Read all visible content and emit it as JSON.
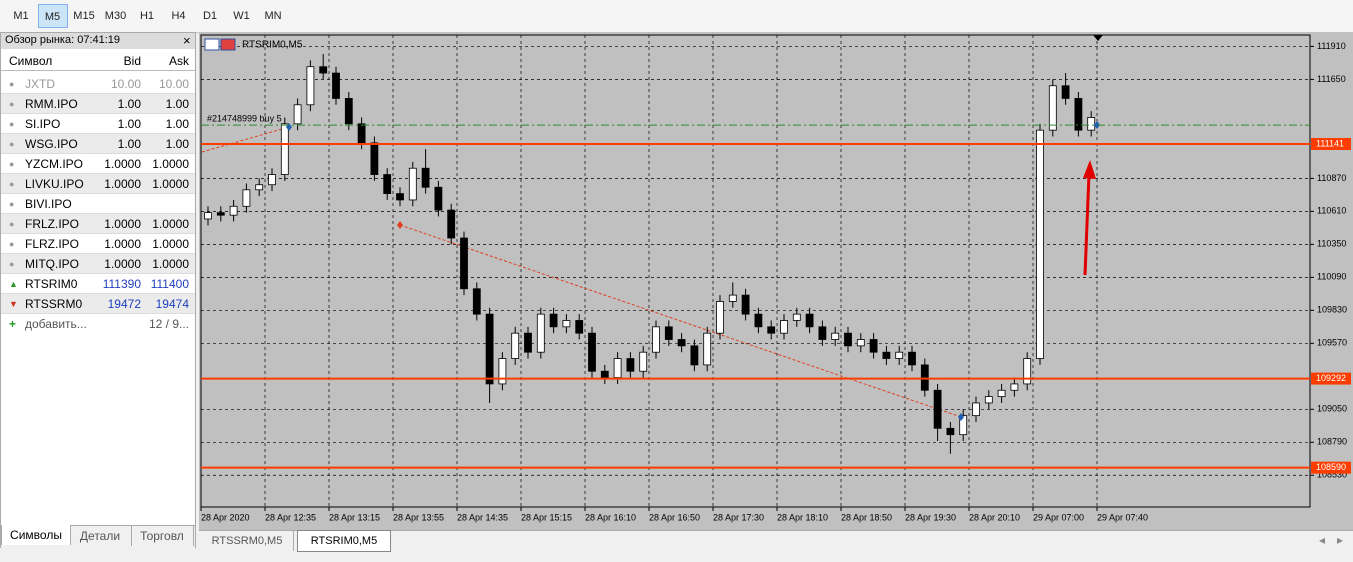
{
  "toolbar": {
    "timeframes": [
      "M1",
      "M5",
      "M15",
      "M30",
      "H1",
      "H4",
      "D1",
      "W1",
      "MN"
    ],
    "active_index": 1
  },
  "market_watch": {
    "title": "Обзор рынка: 07:41:19",
    "close": "×",
    "columns": [
      "Символ",
      "Bid",
      "Ask"
    ],
    "rows": [
      {
        "symbol": "JXTD",
        "bid": "10.00",
        "ask": "10.00",
        "state": "inactive"
      },
      {
        "symbol": "RMM.IPO",
        "bid": "1.00",
        "ask": "1.00",
        "state": "normal"
      },
      {
        "symbol": "SI.IPO",
        "bid": "1.00",
        "ask": "1.00",
        "state": "normal"
      },
      {
        "symbol": "WSG.IPO",
        "bid": "1.00",
        "ask": "1.00",
        "state": "normal"
      },
      {
        "symbol": "YZCM.IPO",
        "bid": "1.0000",
        "ask": "1.0000",
        "state": "normal"
      },
      {
        "symbol": "LIVKU.IPO",
        "bid": "1.0000",
        "ask": "1.0000",
        "state": "normal"
      },
      {
        "symbol": "BIVI.IPO",
        "bid": "",
        "ask": "",
        "state": "normal"
      },
      {
        "symbol": "FRLZ.IPO",
        "bid": "1.0000",
        "ask": "1.0000",
        "state": "normal"
      },
      {
        "symbol": "FLRZ.IPO",
        "bid": "1.0000",
        "ask": "1.0000",
        "state": "normal"
      },
      {
        "symbol": "MITQ.IPO",
        "bid": "1.0000",
        "ask": "1.0000",
        "state": "normal"
      },
      {
        "symbol": "RTSRIM0",
        "bid": "111390",
        "ask": "111400",
        "state": "up"
      },
      {
        "symbol": "RTSSRM0",
        "bid": "19472",
        "ask": "19474",
        "state": "down"
      }
    ],
    "add_label": "добавить...",
    "count": "12 / 9...",
    "tabs": [
      "Символы",
      "Детали",
      "Торговл"
    ],
    "active_tab": 0
  },
  "chart_tabs": [
    "RTSSRM0,M5",
    "RTSRIM0,M5"
  ],
  "active_chart_tab": 1,
  "chart_data": {
    "type": "candlestick",
    "title": "RTSRIM0,M5",
    "x_labels": [
      "28 Apr 2020",
      "28 Apr 12:35",
      "28 Apr 13:15",
      "28 Apr 13:55",
      "28 Apr 14:35",
      "28 Apr 15:15",
      "28 Apr 16:10",
      "28 Apr 16:50",
      "28 Apr 17:30",
      "28 Apr 18:10",
      "28 Apr 18:50",
      "28 Apr 19:30",
      "28 Apr 20:10",
      "29 Apr 07:00",
      "29 Apr 07:40"
    ],
    "ylim": [
      108280,
      112000
    ],
    "yticks": [
      111910,
      111650,
      110870,
      110610,
      110350,
      110090,
      109830,
      109570,
      109050,
      108790,
      108530
    ],
    "grid": true,
    "up_color": "#ffffff",
    "down_color": "#000000",
    "levels": [
      111141,
      109292,
      108590
    ],
    "level_color": "#ff3c00",
    "order": {
      "label": "#214748999 buy 5",
      "price": 111290,
      "color": "#2e8b2e"
    },
    "candles": [
      [
        110550,
        110650,
        110500,
        110600
      ],
      [
        110600,
        110650,
        110530,
        110580
      ],
      [
        110580,
        110700,
        110530,
        110650
      ],
      [
        110650,
        110830,
        110600,
        110780
      ],
      [
        110780,
        110870,
        110730,
        110820
      ],
      [
        110820,
        110950,
        110770,
        110900
      ],
      [
        110900,
        111350,
        110850,
        111300
      ],
      [
        111300,
        111500,
        111250,
        111450
      ],
      [
        111450,
        111800,
        111400,
        111750
      ],
      [
        111750,
        111850,
        111650,
        111700
      ],
      [
        111700,
        111750,
        111450,
        111500
      ],
      [
        111500,
        111550,
        111250,
        111300
      ],
      [
        111300,
        111350,
        111100,
        111150
      ],
      [
        111150,
        111200,
        110850,
        110900
      ],
      [
        110900,
        110950,
        110700,
        110750
      ],
      [
        110750,
        110800,
        110650,
        110700
      ],
      [
        110700,
        111000,
        110650,
        110950
      ],
      [
        110950,
        111100,
        110750,
        110800
      ],
      [
        110800,
        110850,
        110570,
        110620
      ],
      [
        110620,
        110670,
        110350,
        110400
      ],
      [
        110400,
        110450,
        109950,
        110000
      ],
      [
        110000,
        110050,
        109750,
        109800
      ],
      [
        109800,
        109850,
        109100,
        109250
      ],
      [
        109250,
        109500,
        109200,
        109450
      ],
      [
        109450,
        109700,
        109400,
        109650
      ],
      [
        109650,
        109700,
        109450,
        109500
      ],
      [
        109500,
        109850,
        109450,
        109800
      ],
      [
        109800,
        109850,
        109650,
        109700
      ],
      [
        109700,
        109800,
        109650,
        109750
      ],
      [
        109750,
        109800,
        109600,
        109650
      ],
      [
        109650,
        109700,
        109300,
        109350
      ],
      [
        109350,
        109400,
        109250,
        109300
      ],
      [
        109300,
        109500,
        109250,
        109450
      ],
      [
        109450,
        109500,
        109300,
        109350
      ],
      [
        109350,
        109550,
        109300,
        109500
      ],
      [
        109500,
        109750,
        109450,
        109700
      ],
      [
        109700,
        109750,
        109550,
        109600
      ],
      [
        109600,
        109650,
        109500,
        109550
      ],
      [
        109550,
        109600,
        109350,
        109400
      ],
      [
        109400,
        109700,
        109350,
        109650
      ],
      [
        109650,
        109950,
        109600,
        109900
      ],
      [
        109900,
        110050,
        109850,
        109950
      ],
      [
        109950,
        110000,
        109750,
        109800
      ],
      [
        109800,
        109850,
        109650,
        109700
      ],
      [
        109700,
        109750,
        109600,
        109650
      ],
      [
        109650,
        109800,
        109600,
        109750
      ],
      [
        109750,
        109850,
        109700,
        109800
      ],
      [
        109800,
        109850,
        109650,
        109700
      ],
      [
        109700,
        109750,
        109550,
        109600
      ],
      [
        109600,
        109700,
        109550,
        109650
      ],
      [
        109650,
        109700,
        109500,
        109550
      ],
      [
        109550,
        109650,
        109500,
        109600
      ],
      [
        109600,
        109650,
        109450,
        109500
      ],
      [
        109500,
        109550,
        109400,
        109450
      ],
      [
        109450,
        109550,
        109400,
        109500
      ],
      [
        109500,
        109550,
        109350,
        109400
      ],
      [
        109400,
        109450,
        109150,
        109200
      ],
      [
        109200,
        109250,
        108800,
        108900
      ],
      [
        108900,
        108950,
        108700,
        108850
      ],
      [
        108850,
        109050,
        108800,
        109000
      ],
      [
        109000,
        109150,
        108950,
        109100
      ],
      [
        109100,
        109200,
        109050,
        109150
      ],
      [
        109150,
        109250,
        109100,
        109200
      ],
      [
        109200,
        109300,
        109150,
        109250
      ],
      [
        109250,
        109500,
        109200,
        109450
      ],
      [
        109450,
        111300,
        109400,
        111250
      ],
      [
        111250,
        111650,
        111200,
        111600
      ],
      [
        111600,
        111700,
        111450,
        111500
      ],
      [
        111500,
        111550,
        111200,
        111250
      ],
      [
        111250,
        111400,
        111200,
        111350
      ]
    ]
  }
}
